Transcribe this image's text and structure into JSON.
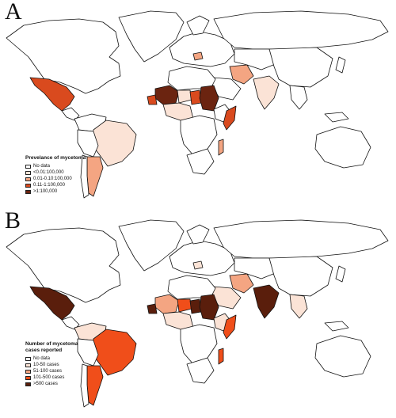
{
  "panels": [
    {
      "letter": "A",
      "legend": {
        "title": "Prevelance of mycetoma",
        "items": [
          {
            "label": "No data",
            "color": "#ffffff"
          },
          {
            "label": "<0.01:100,000",
            "color": "#fbe3d6"
          },
          {
            "label": "0.01-0.10:100,000",
            "color": "#f4a582"
          },
          {
            "label": "0.11-1:100,000",
            "color": "#d94a1e"
          },
          {
            "label": ">1:100,000",
            "color": "#6b2410"
          }
        ]
      }
    },
    {
      "letter": "B",
      "legend": {
        "title": "Number of mycetoma cases reported",
        "items": [
          {
            "label": "No data",
            "color": "#ffffff"
          },
          {
            "label": "10-50 cases",
            "color": "#fbe3d6"
          },
          {
            "label": "51-100 cases",
            "color": "#f4a582"
          },
          {
            "label": "101-500 cases",
            "color": "#f04e1a"
          },
          {
            "label": ">500 cases",
            "color": "#5a1e0c"
          }
        ]
      }
    }
  ]
}
